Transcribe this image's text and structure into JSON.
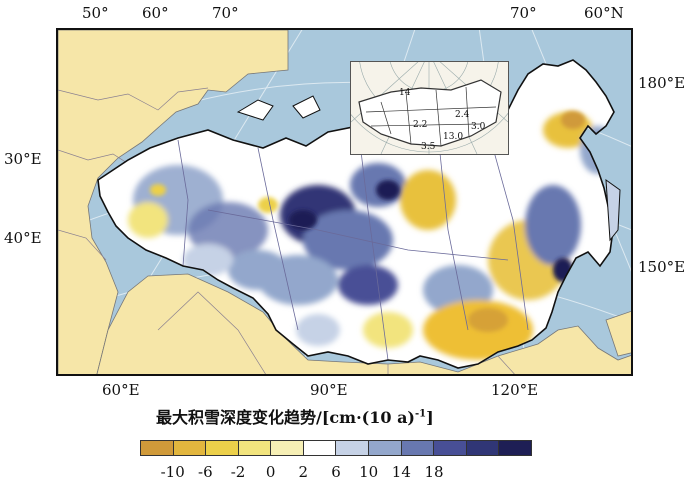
{
  "map": {
    "top_labels": [
      "50°",
      "60°",
      "70°",
      "70°",
      "60°N"
    ],
    "left_labels": [
      "30°E",
      "40°E"
    ],
    "right_labels": [
      "180°E",
      "150°E"
    ],
    "bottom_labels": [
      "60°E",
      "90°E",
      "120°E"
    ],
    "inset_labels": [
      "14",
      "2.4",
      "2.2",
      "3.0",
      "13.0",
      "3.5"
    ]
  },
  "legend": {
    "title": "最大积雪深度变化趋势/[cm·(10 a)",
    "title_sup": "-1",
    "title_end": "]",
    "ticks": [
      "-10",
      "-6",
      "-2",
      "0",
      "2",
      "6",
      "10",
      "14",
      "18"
    ],
    "colors": [
      "#d09a3a",
      "#e2b63e",
      "#ecd04a",
      "#f2e47e",
      "#f6efb5",
      "#ffffff",
      "#c6d2e6",
      "#93a7cc",
      "#6878b0",
      "#484f96",
      "#303676",
      "#1e1f55"
    ]
  },
  "colors": {
    "ocean": "#a9c8dc",
    "land_outside": "#f6e6a8",
    "russia_base": "#ffffff",
    "trend_increase": "#6878b0",
    "trend_decrease": "#e8c13e"
  }
}
